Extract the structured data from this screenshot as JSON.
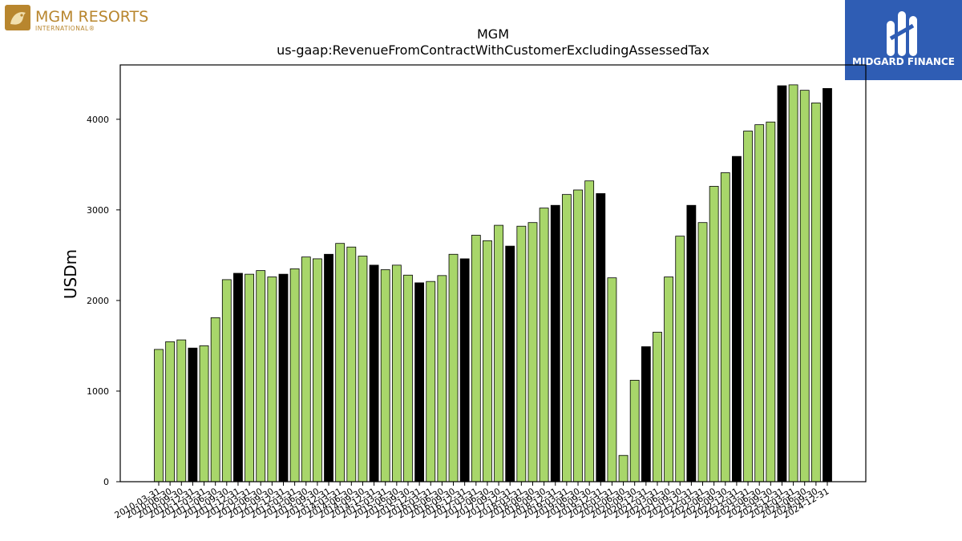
{
  "brand_left": {
    "name": "MGM RESORTS",
    "sub": "INTERNATIONAL®",
    "color": "#b8862e"
  },
  "brand_right": {
    "name": "MIDGARD FINANCE",
    "bg": "#2f5db4"
  },
  "chart_data": {
    "type": "bar",
    "title": "MGM",
    "subtitle": "us-gaap:RevenueFromContractWithCustomerExcludingAssessedTax",
    "xlabel": "",
    "ylabel": "USDm",
    "ylim": [
      0,
      4600
    ],
    "yticks": [
      0,
      1000,
      2000,
      3000,
      4000
    ],
    "colors": {
      "quarter": "#a8d66a",
      "annual": "#000000"
    },
    "categories": [
      "2010-03-31",
      "2010-06-30",
      "2010-09-30",
      "2010-12-31",
      "2011-03-31",
      "2011-06-30",
      "2011-09-30",
      "2011-12-31",
      "2012-03-31",
      "2012-06-30",
      "2012-09-30",
      "2012-12-31",
      "2013-03-31",
      "2013-06-30",
      "2013-09-30",
      "2013-12-31",
      "2014-03-31",
      "2014-06-30",
      "2014-09-30",
      "2014-12-31",
      "2015-03-31",
      "2015-06-30",
      "2015-09-30",
      "2015-12-31",
      "2016-03-31",
      "2016-06-30",
      "2016-09-30",
      "2016-12-31",
      "2017-03-31",
      "2017-06-30",
      "2017-09-30",
      "2017-12-31",
      "2018-03-31",
      "2018-06-30",
      "2018-09-30",
      "2018-12-31",
      "2019-03-31",
      "2019-06-30",
      "2019-09-30",
      "2019-12-31",
      "2020-03-31",
      "2020-06-30",
      "2020-09-30",
      "2020-12-31",
      "2021-03-31",
      "2021-06-30",
      "2021-09-30",
      "2021-12-31",
      "2022-03-31",
      "2022-06-30",
      "2022-09-30",
      "2022-12-31",
      "2023-03-31",
      "2023-06-30",
      "2023-09-30",
      "2023-12-31",
      "2024-03-31",
      "2024-06-30",
      "2024-09-30",
      "2024-12-31"
    ],
    "values": [
      1460,
      1545,
      1565,
      1475,
      1500,
      1810,
      2230,
      2300,
      2290,
      2330,
      2260,
      2290,
      2350,
      2480,
      2460,
      2510,
      2630,
      2590,
      2490,
      2390,
      2340,
      2390,
      2280,
      2195,
      2210,
      2275,
      2510,
      2460,
      2720,
      2660,
      2830,
      2600,
      2820,
      2860,
      3020,
      3050,
      3170,
      3220,
      3320,
      3180,
      2250,
      290,
      1120,
      1490,
      1650,
      2260,
      2710,
      3050,
      2860,
      3260,
      3410,
      3590,
      3870,
      3940,
      3970,
      4370,
      4380,
      4320,
      4180,
      4340
    ],
    "annual_flags": [
      0,
      0,
      0,
      1,
      0,
      0,
      0,
      1,
      0,
      0,
      0,
      1,
      0,
      0,
      0,
      1,
      0,
      0,
      0,
      1,
      0,
      0,
      0,
      1,
      0,
      0,
      0,
      1,
      0,
      0,
      0,
      1,
      0,
      0,
      0,
      1,
      0,
      0,
      0,
      1,
      0,
      0,
      0,
      1,
      0,
      0,
      0,
      1,
      0,
      0,
      0,
      1,
      0,
      0,
      0,
      1,
      0,
      0,
      0,
      1
    ],
    "grid": false,
    "legend": "none"
  }
}
